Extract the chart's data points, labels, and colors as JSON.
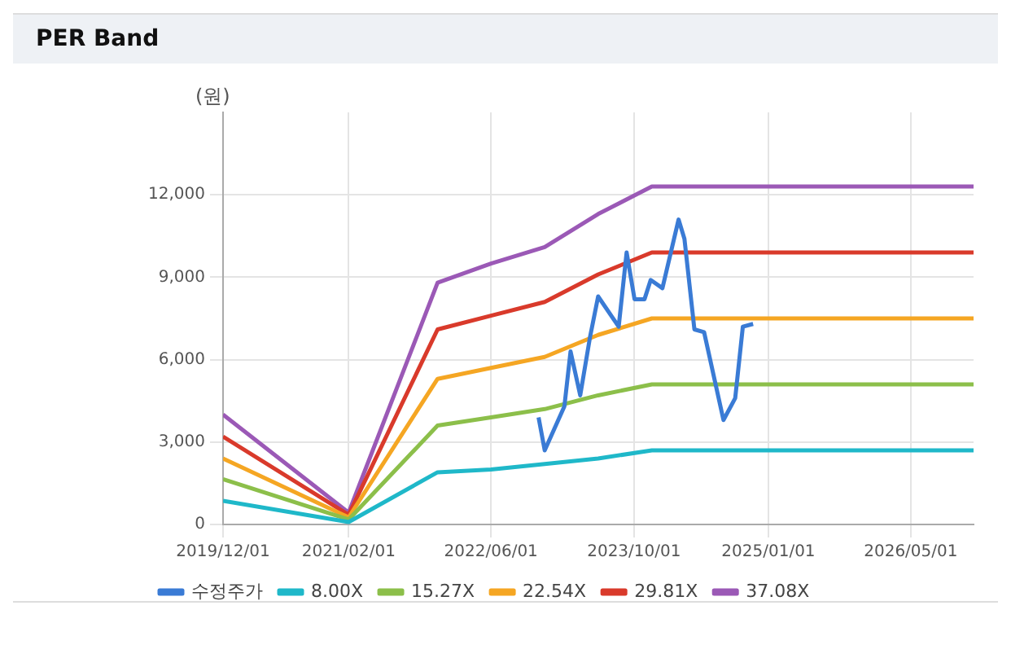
{
  "chart_data": {
    "type": "line",
    "title": "PER Band",
    "ylabel": "(원)",
    "xlim": [
      "2019-12-01",
      "2026-12-01"
    ],
    "xticks": [
      {
        "value": "2019-12-01",
        "label": "2019/12/01"
      },
      {
        "value": "2021-02-01",
        "label": "2021/02/01"
      },
      {
        "value": "2022-06-01",
        "label": "2022/06/01"
      },
      {
        "value": "2023-10-01",
        "label": "2023/10/01"
      },
      {
        "value": "2025-01-01",
        "label": "2025/01/01"
      },
      {
        "value": "2026-05-01",
        "label": "2026/05/01"
      }
    ],
    "ylim": [
      0,
      15000
    ],
    "yticks": [
      {
        "value": 0,
        "label": "0"
      },
      {
        "value": 3000,
        "label": "3,000"
      },
      {
        "value": 6000,
        "label": "6,000"
      },
      {
        "value": 9000,
        "label": "9,000"
      },
      {
        "value": 12000,
        "label": "12,000"
      }
    ],
    "grid": true,
    "legend": "bottom",
    "marker": "none",
    "line_style": "solid",
    "x": [
      "2019-12-01",
      "2021-02-01",
      "2021-12-01",
      "2022-06-01",
      "2022-12-01",
      "2023-06-01",
      "2023-12-01",
      "2026-12-01"
    ],
    "series": [
      {
        "name": "수정주가",
        "color": "#3a7bd5",
        "x": [
          "2022-11-10",
          "2022-12-01",
          "2023-02-06",
          "2023-02-27",
          "2023-04-01",
          "2023-05-04",
          "2023-06-01",
          "2023-08-10",
          "2023-09-06",
          "2023-10-03",
          "2023-11-06",
          "2023-11-27",
          "2024-01-06",
          "2024-03-01",
          "2024-03-21",
          "2024-04-24",
          "2024-05-27",
          "2024-08-01",
          "2024-09-10",
          "2024-10-06",
          "2024-11-10"
        ],
        "values": [
          3900,
          2700,
          4300,
          6300,
          4700,
          6800,
          8300,
          7200,
          9900,
          8200,
          8200,
          8900,
          8600,
          11100,
          10400,
          7100,
          7000,
          3800,
          4600,
          7200,
          7300
        ]
      },
      {
        "name": "8.00X",
        "color": "#1fb8c9",
        "values": [
          860,
          90,
          1900,
          2000,
          2200,
          2400,
          2700,
          2700
        ]
      },
      {
        "name": "15.27X",
        "color": "#8cbf4a",
        "values": [
          1650,
          180,
          3600,
          3900,
          4200,
          4700,
          5100,
          5100
        ]
      },
      {
        "name": "22.54X",
        "color": "#f5a623",
        "values": [
          2400,
          260,
          5300,
          5700,
          6100,
          6900,
          7500,
          7500
        ]
      },
      {
        "name": "29.81X",
        "color": "#d93a2b",
        "values": [
          3200,
          350,
          7100,
          7600,
          8100,
          9100,
          9900,
          9900
        ]
      },
      {
        "name": "37.08X",
        "color": "#9b59b6",
        "values": [
          4000,
          430,
          8800,
          9500,
          10100,
          11300,
          12300,
          12300
        ]
      }
    ]
  }
}
